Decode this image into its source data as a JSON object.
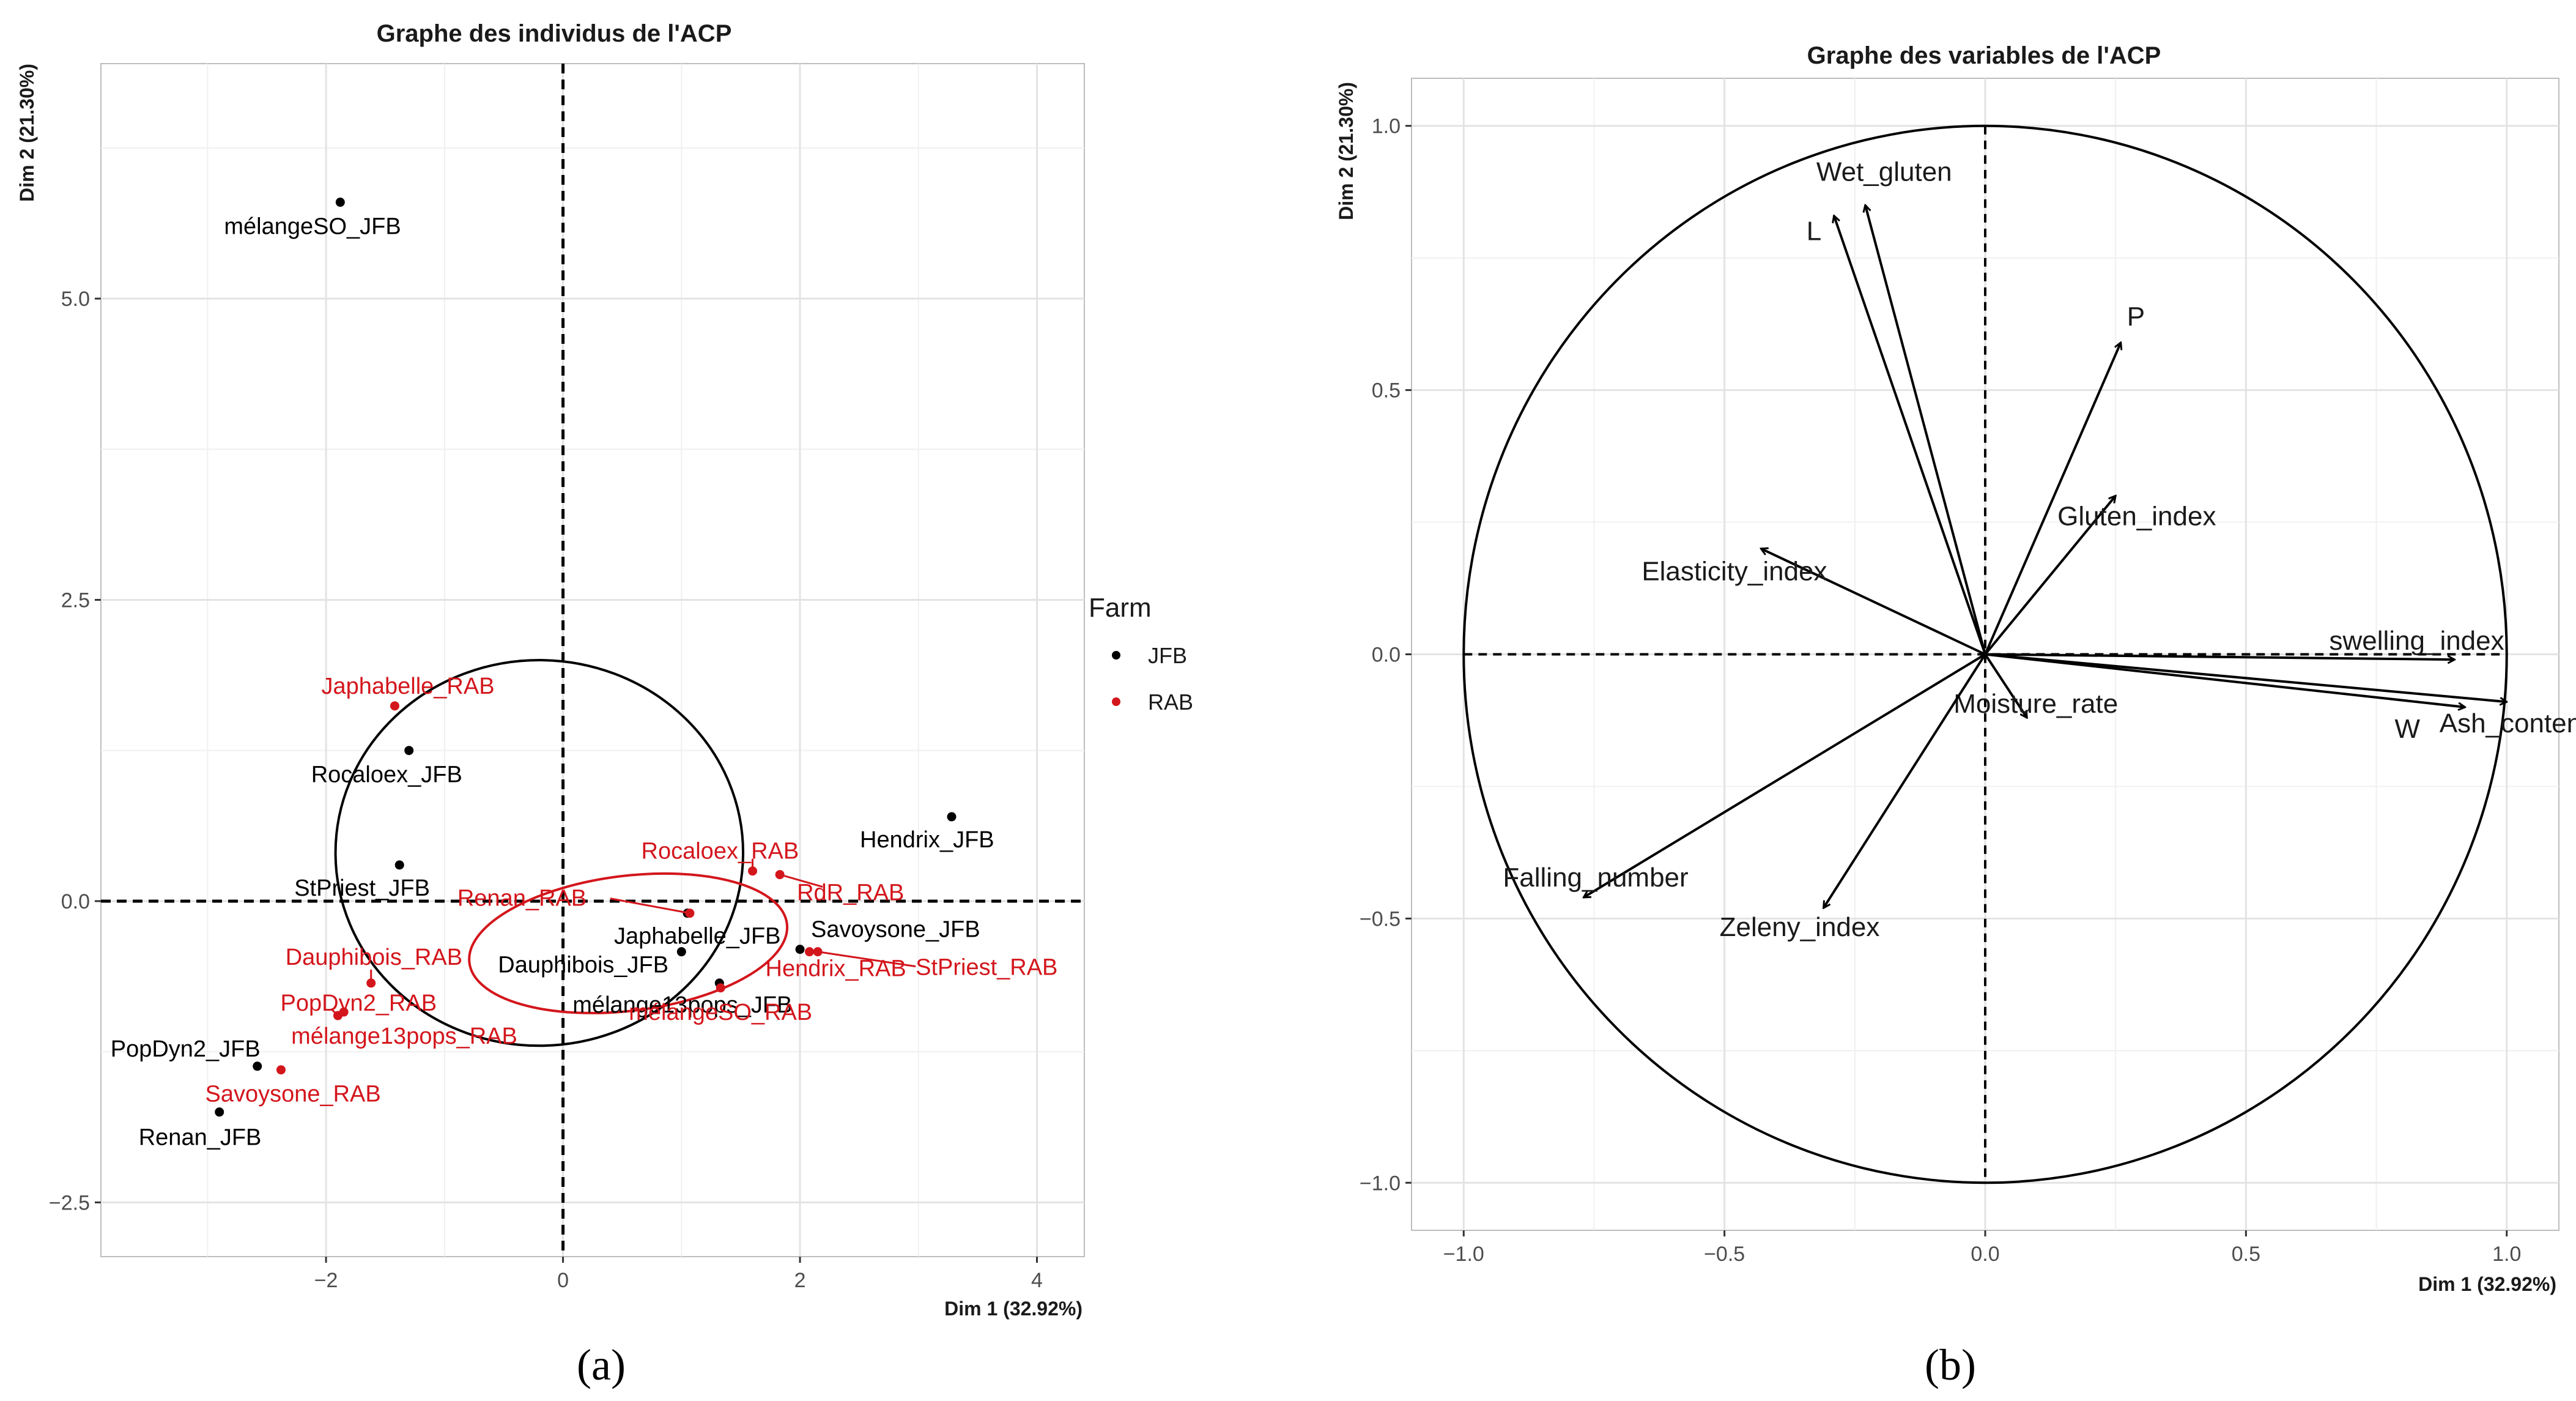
{
  "chart_data": [
    {
      "type": "scatter",
      "title": "Graphe des individus de l'ACP",
      "xlabel": "Dim 1 (32.92%)",
      "ylabel": "Dim 2 (21.30%)",
      "xlim": [
        -3.9,
        4.4
      ],
      "ylim": [
        -2.95,
        6.95
      ],
      "xticks": [
        -2,
        0,
        2,
        4
      ],
      "yticks": [
        -2.5,
        0.0,
        2.5,
        5.0
      ],
      "legend": {
        "title": "Farm",
        "position": "right",
        "entries": [
          {
            "label": "JFB",
            "color": "#000000"
          },
          {
            "label": "RAB",
            "color": "#d3161c"
          }
        ]
      },
      "series": [
        {
          "name": "JFB",
          "color": "#000000",
          "points": [
            {
              "label": "mélangeSO_JFB",
              "x": -1.88,
              "y": 5.8
            },
            {
              "label": "Rocaloex_JFB",
              "x": -1.3,
              "y": 1.25
            },
            {
              "label": "StPriest_JFB",
              "x": -1.38,
              "y": 0.3
            },
            {
              "label": "Hendrix_JFB",
              "x": 3.28,
              "y": 0.7
            },
            {
              "label": "Japhabelle_JFB",
              "x": 1.05,
              "y": -0.1
            },
            {
              "label": "Dauphibois_JFB",
              "x": 1.0,
              "y": -0.42
            },
            {
              "label": "Savoysone_JFB",
              "x": 2.0,
              "y": -0.4
            },
            {
              "label": "mélange13pops_JFB",
              "x": 1.32,
              "y": -0.68
            },
            {
              "label": "PopDyn2_JFB",
              "x": -2.58,
              "y": -1.37
            },
            {
              "label": "Renan_JFB",
              "x": -2.9,
              "y": -1.75
            }
          ]
        },
        {
          "name": "RAB",
          "color": "#d3161c",
          "points": [
            {
              "label": "Japhabelle_RAB",
              "x": -1.42,
              "y": 1.62
            },
            {
              "label": "Rocaloex_RAB",
              "x": 1.6,
              "y": 0.25
            },
            {
              "label": "RdR_RAB",
              "x": 1.83,
              "y": 0.22
            },
            {
              "label": "Renan_RAB",
              "x": 1.07,
              "y": -0.1
            },
            {
              "label": "Hendrix_RAB",
              "x": 2.08,
              "y": -0.42
            },
            {
              "label": "StPriest_RAB",
              "x": 2.15,
              "y": -0.42
            },
            {
              "label": "mélangeSO_RAB",
              "x": 1.33,
              "y": -0.72
            },
            {
              "label": "Dauphibois_RAB",
              "x": -1.62,
              "y": -0.68
            },
            {
              "label": "PopDyn2_RAB",
              "x": -1.9,
              "y": -0.95
            },
            {
              "label": "mélange13pops_RAB",
              "x": -1.85,
              "y": -0.92
            },
            {
              "label": "Savoysone_RAB",
              "x": -2.38,
              "y": -1.4
            }
          ]
        }
      ],
      "ellipses": [
        {
          "group": "JFB",
          "color": "#000000",
          "cx": -0.2,
          "cy": 0.4,
          "rx": 1.72,
          "ry": 1.6
        },
        {
          "group": "RAB",
          "color": "#d3161c",
          "cx": 0.55,
          "cy": -0.35,
          "rx": 1.35,
          "ry": 0.56,
          "angle_deg": 7
        }
      ],
      "reference_lines": {
        "x": 0,
        "y": 0,
        "style": "dashed"
      }
    },
    {
      "type": "scatter",
      "subtype": "correlation-circle",
      "title": "Graphe des variables de l'ACP",
      "xlabel": "Dim 1 (32.92%)",
      "ylabel": "Dim 2 (21.30%)",
      "xlim": [
        -1.1,
        1.1
      ],
      "ylim": [
        -1.09,
        1.09
      ],
      "xticks": [
        -1.0,
        -0.5,
        0.0,
        0.5,
        1.0
      ],
      "yticks": [
        -1.0,
        -0.5,
        0.0,
        0.5,
        1.0
      ],
      "circle_radius": 1.0,
      "reference_lines": {
        "x": 0,
        "y": 0,
        "style": "dashed"
      },
      "variables": [
        {
          "label": "Wet_gluten",
          "x": -0.23,
          "y": 0.85
        },
        {
          "label": "L",
          "x": -0.29,
          "y": 0.83
        },
        {
          "label": "P",
          "x": 0.26,
          "y": 0.59
        },
        {
          "label": "Gluten_index",
          "x": 0.25,
          "y": 0.3
        },
        {
          "label": "Elasticity_index",
          "x": -0.43,
          "y": 0.2
        },
        {
          "label": "swelling_index",
          "x": 0.9,
          "y": -0.01
        },
        {
          "label": "Ash_content",
          "x": 1.0,
          "y": -0.09
        },
        {
          "label": "W",
          "x": 0.92,
          "y": -0.1
        },
        {
          "label": "Moisture_rate",
          "x": 0.08,
          "y": -0.12
        },
        {
          "label": "Falling_number",
          "x": -0.77,
          "y": -0.46
        },
        {
          "label": "Zeleny_index",
          "x": -0.31,
          "y": -0.48
        }
      ]
    }
  ],
  "captions": {
    "a": "(a)",
    "b": "(b)"
  }
}
